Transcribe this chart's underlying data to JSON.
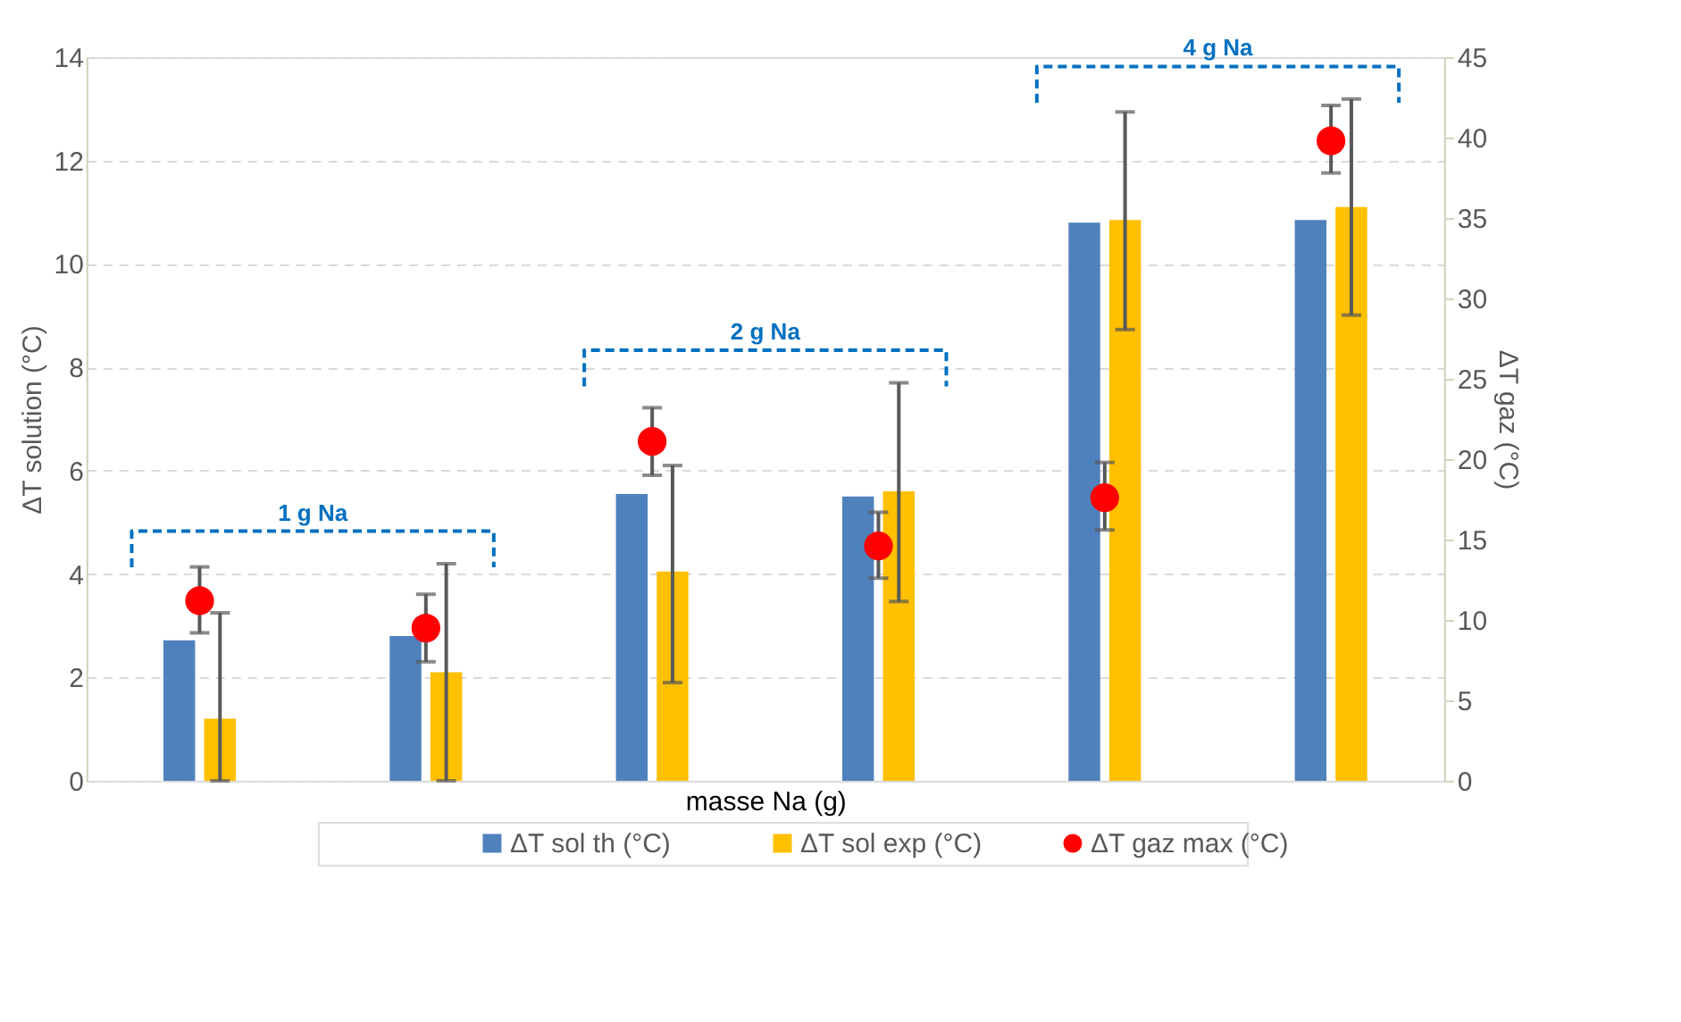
{
  "chart_data": {
    "type": "bar",
    "xlabel": "masse Na (g)",
    "ylabel": "ΔT solution (°C)",
    "y2label": "ΔT gaz (°C)",
    "categories": [
      null,
      null,
      null,
      null,
      null,
      null
    ],
    "series": [
      {
        "name": "ΔT sol th (°C)",
        "type": "bar",
        "color": "#4f81bd",
        "values": [
          2.72,
          2.8,
          5.55,
          5.5,
          10.8,
          10.85
        ]
      },
      {
        "name": "ΔT sol exp (°C)",
        "type": "bar",
        "color": "#ffc000",
        "values": [
          1.2,
          2.1,
          4.05,
          5.6,
          10.85,
          11.1
        ],
        "errors": [
          [
            0,
            3.25
          ],
          [
            0,
            4.2
          ],
          [
            1.9,
            6.1
          ],
          [
            3.47,
            7.7
          ],
          [
            8.73,
            12.94
          ],
          [
            9.01,
            13.19
          ]
        ]
      },
      {
        "name": "ΔT gaz max (°C)",
        "type": "scatter",
        "axis": "y2",
        "color": "#ff0000",
        "marker": "circle",
        "values": [
          11.2,
          9.5,
          21.1,
          14.6,
          17.6,
          39.8
        ],
        "errors": [
          [
            9.2,
            13.3
          ],
          [
            7.4,
            11.6
          ],
          [
            19.0,
            23.2
          ],
          [
            12.6,
            16.7
          ],
          [
            15.6,
            19.8
          ],
          [
            37.8,
            42.0
          ]
        ]
      }
    ],
    "ylim": [
      0,
      14
    ],
    "yticks": [
      0,
      2,
      4,
      6,
      8,
      10,
      12,
      14
    ],
    "y2lim": [
      0,
      45
    ],
    "y2ticks": [
      0,
      5,
      10,
      15,
      20,
      25,
      30,
      35,
      40,
      45
    ],
    "annotations": [
      "1 g Na",
      "2 g Na",
      "4 g Na"
    ],
    "grid": "y",
    "legend": "bottom",
    "tick_labels": "y"
  }
}
